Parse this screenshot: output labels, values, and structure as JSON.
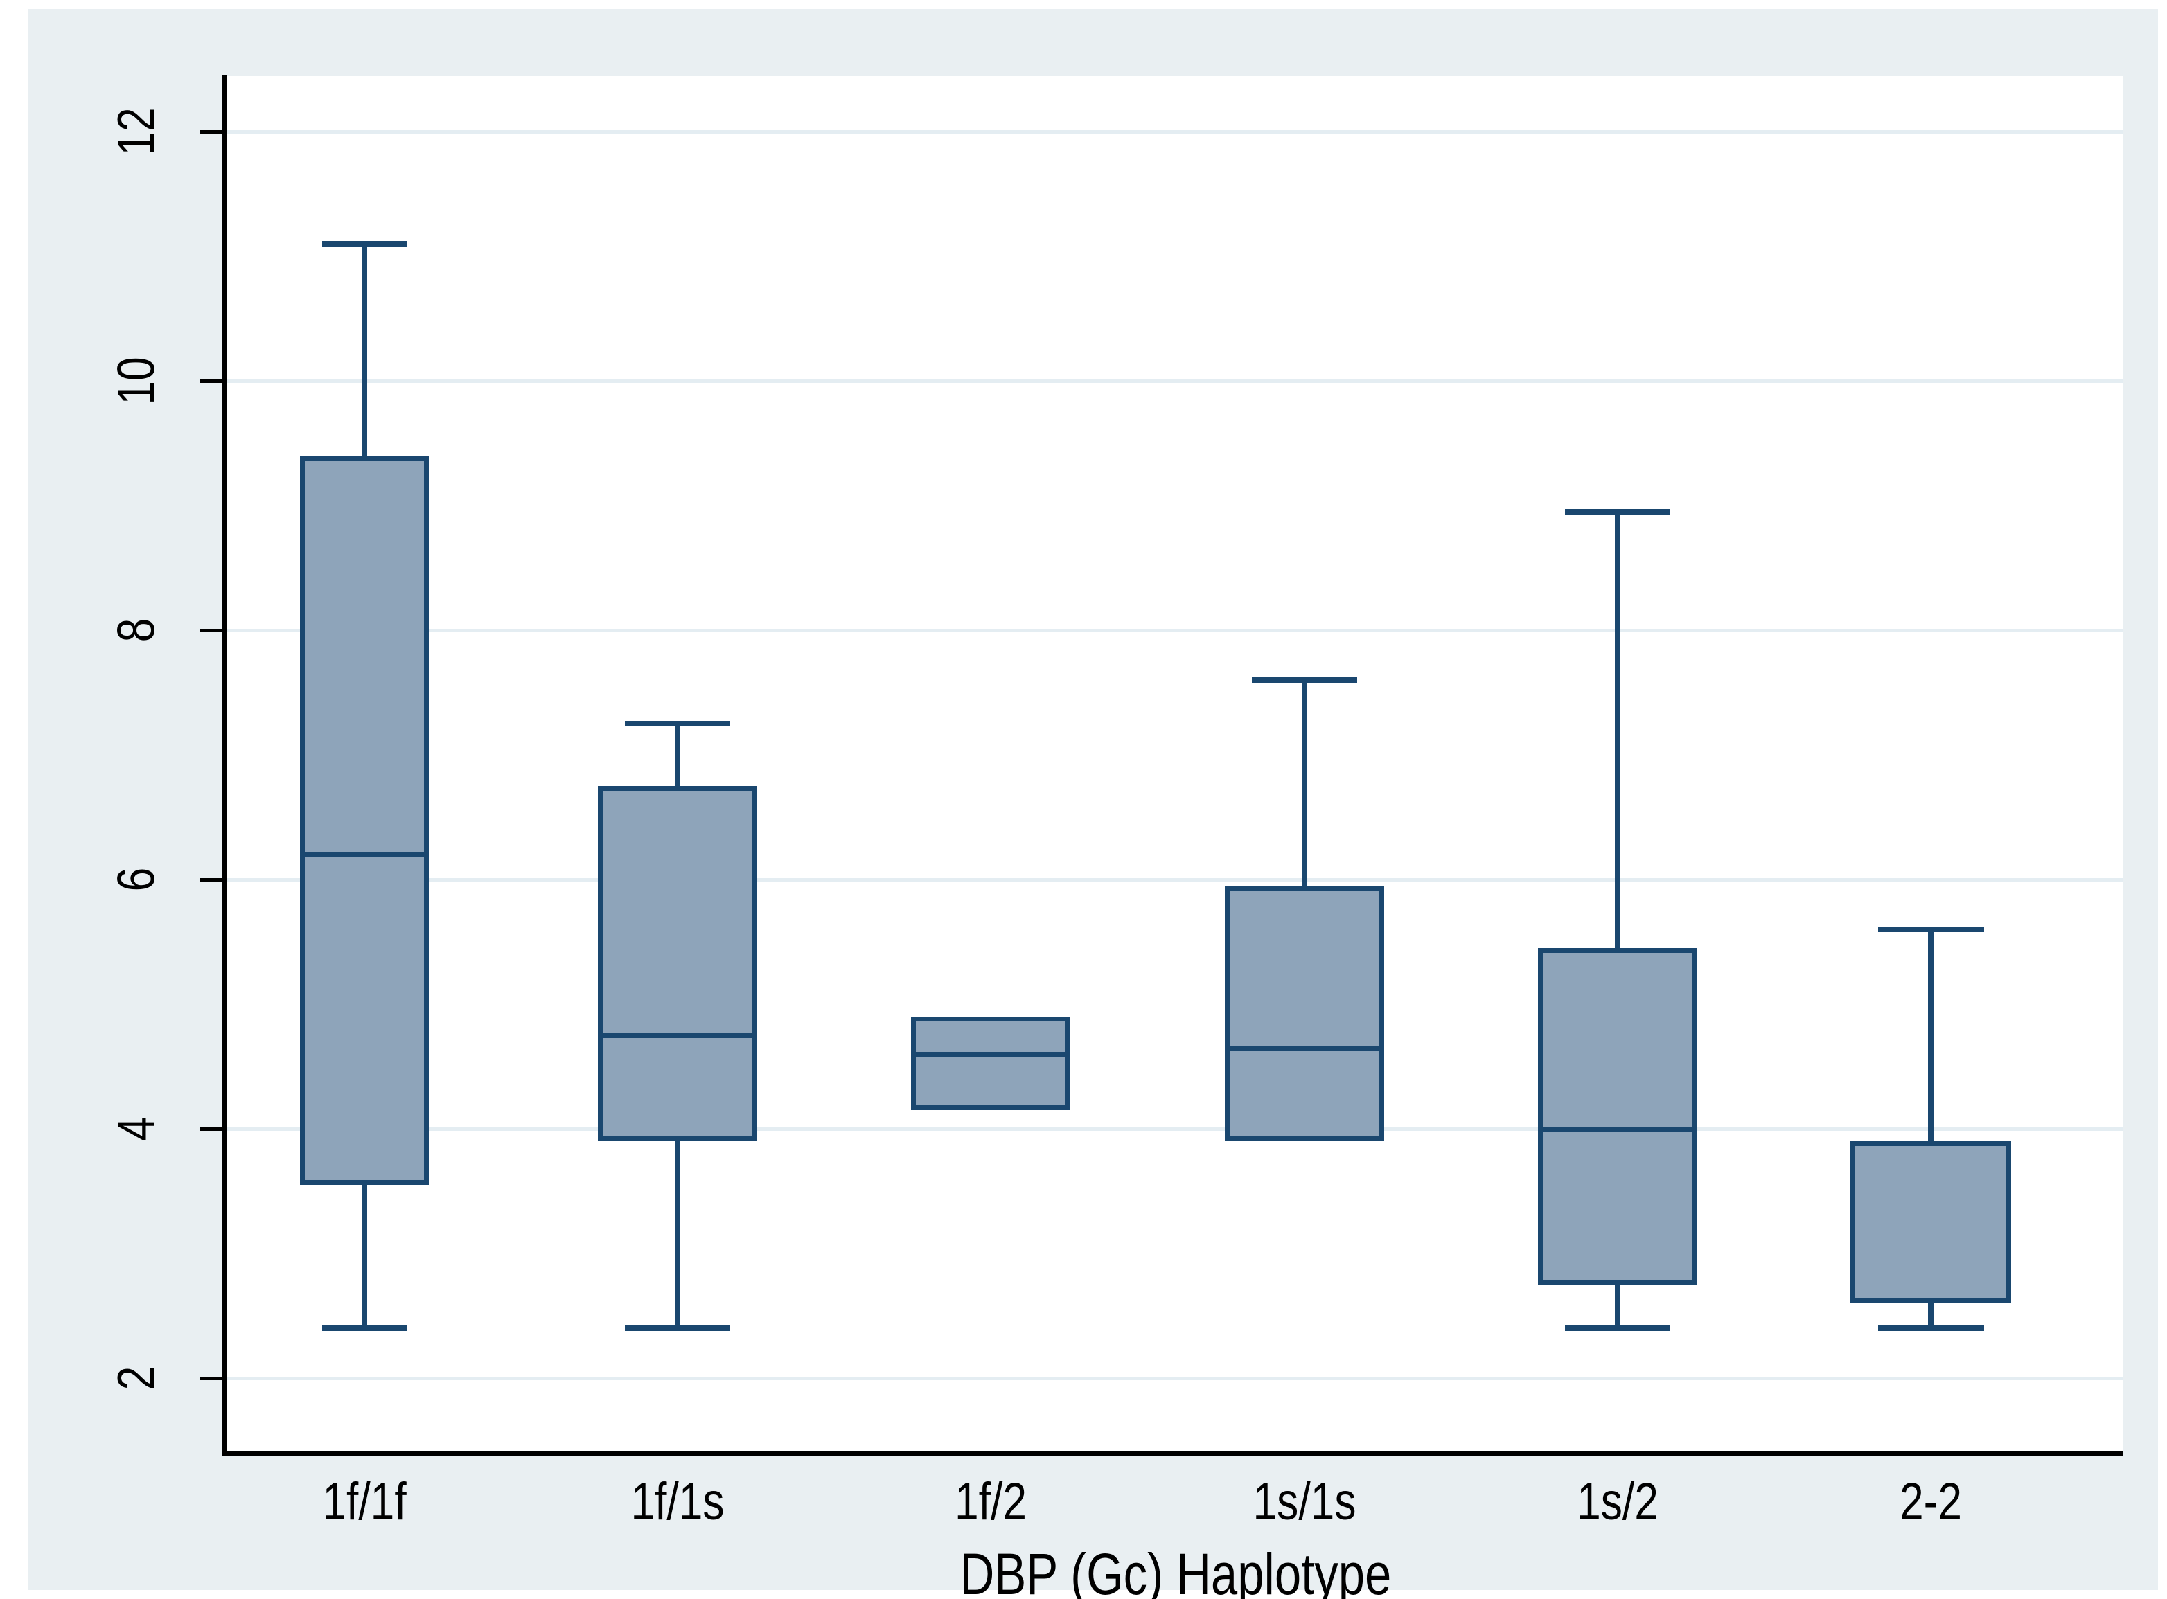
{
  "figure": {
    "description": "Stata-style box plot of a continuous variable by DBP (Gc) haplotype",
    "colors": {
      "background": "#e9eff2",
      "plot_background": "#ffffff",
      "box_fill": "#8ea4ba",
      "box_border": "#1a476f",
      "whisker": "#1a476f",
      "gridline": "#e4edf2",
      "axis": "#000000",
      "text": "#000000"
    }
  },
  "chart_data": {
    "type": "box",
    "title": "",
    "xlabel": "DBP (Gc) Haplotype",
    "ylabel": "",
    "x_categories": [
      "1f/1f",
      "1f/1s",
      "1f/2",
      "1s/1s",
      "1s/2",
      "2-2"
    ],
    "y_ticks": [
      2,
      4,
      6,
      8,
      10,
      12
    ],
    "ylim": [
      1.4,
      12.45
    ],
    "grid": "horizontal-at-every-y-tick",
    "legend": "none",
    "series": [
      {
        "label": "1f/1f",
        "whisker_low": 2.4,
        "q1": 3.55,
        "median": 6.2,
        "q3": 9.4,
        "whisker_high": 11.1,
        "lower_whisker_visible": true,
        "upper_whisker_visible": true,
        "median_visible": true
      },
      {
        "label": "1f/1s",
        "whisker_low": 2.4,
        "q1": 3.9,
        "median": 4.75,
        "q3": 6.75,
        "whisker_high": 7.25,
        "lower_whisker_visible": true,
        "upper_whisker_visible": true,
        "median_visible": true
      },
      {
        "label": "1f/2",
        "whisker_low": 4.15,
        "q1": 4.15,
        "median": 4.6,
        "q3": 4.9,
        "whisker_high": 4.9,
        "lower_whisker_visible": false,
        "upper_whisker_visible": false,
        "median_visible": true
      },
      {
        "label": "1s/1s",
        "whisker_low": 3.9,
        "q1": 3.9,
        "median": 4.65,
        "q3": 5.95,
        "whisker_high": 7.6,
        "lower_whisker_visible": false,
        "upper_whisker_visible": true,
        "median_visible": true
      },
      {
        "label": "1s/2",
        "whisker_low": 2.4,
        "q1": 2.75,
        "median": 4.0,
        "q3": 5.45,
        "whisker_high": 8.95,
        "lower_whisker_visible": true,
        "upper_whisker_visible": true,
        "median_visible": true
      },
      {
        "label": "2-2",
        "whisker_low": 2.4,
        "q1": 2.6,
        "median": 2.6,
        "q3": 3.9,
        "whisker_high": 5.6,
        "lower_whisker_visible": true,
        "upper_whisker_visible": true,
        "median_visible": false
      }
    ]
  }
}
